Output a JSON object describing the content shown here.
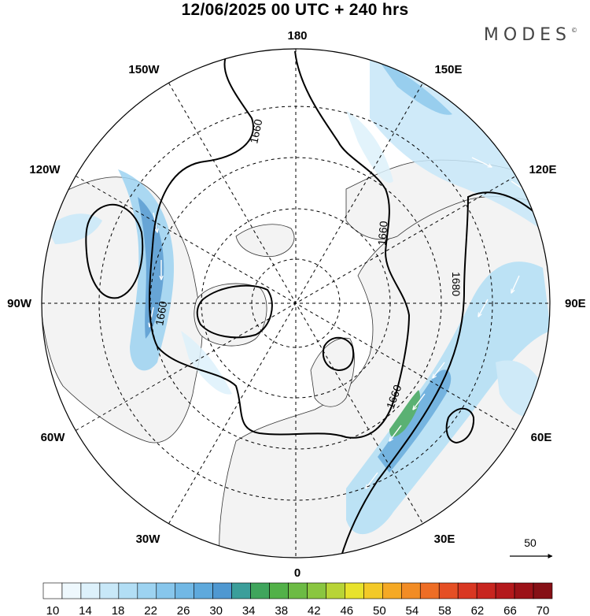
{
  "title": "12/06/2025  00 UTC  + 240 hrs",
  "brand": "MODES",
  "brand_mark": "©",
  "longitude_labels": {
    "top": "180",
    "bottom": "0",
    "left": "90W",
    "right": "90E",
    "upper_left_150": "150W",
    "upper_left_120": "120W",
    "upper_right_150": "150E",
    "upper_right_120": "120E",
    "lower_left_60": "60W",
    "lower_left_30": "30W",
    "lower_right_60": "60E",
    "lower_right_30": "30E"
  },
  "contour_labels": [
    "1660",
    "1680"
  ],
  "reference_vector": {
    "label": "50"
  },
  "colorbar": {
    "ticks": [
      "10",
      "14",
      "18",
      "22",
      "26",
      "30",
      "34",
      "38",
      "42",
      "46",
      "50",
      "54",
      "58",
      "62",
      "66",
      "70"
    ],
    "colors": [
      "#ffffff",
      "#eef8fd",
      "#ddf1fb",
      "#c8e8f8",
      "#b2def5",
      "#9dd3f1",
      "#87c6ec",
      "#71b8e5",
      "#5ea9dc",
      "#4f98d1",
      "#3b9e9a",
      "#3fa55c",
      "#52b148",
      "#6cbb44",
      "#8ac640",
      "#b8d436",
      "#e8e22c",
      "#f3c928",
      "#f5a924",
      "#f28c25",
      "#ee6d25",
      "#e54f24",
      "#d93722",
      "#c8251f",
      "#b4191c",
      "#9c1218",
      "#861016"
    ]
  },
  "colors": {
    "land_fill": "#f3f3f3",
    "wind_light": "#c7e7f8",
    "wind_mid": "#87c6ec",
    "wind_strong": "#4f98d1",
    "jet_core": "#3fa55c"
  }
}
